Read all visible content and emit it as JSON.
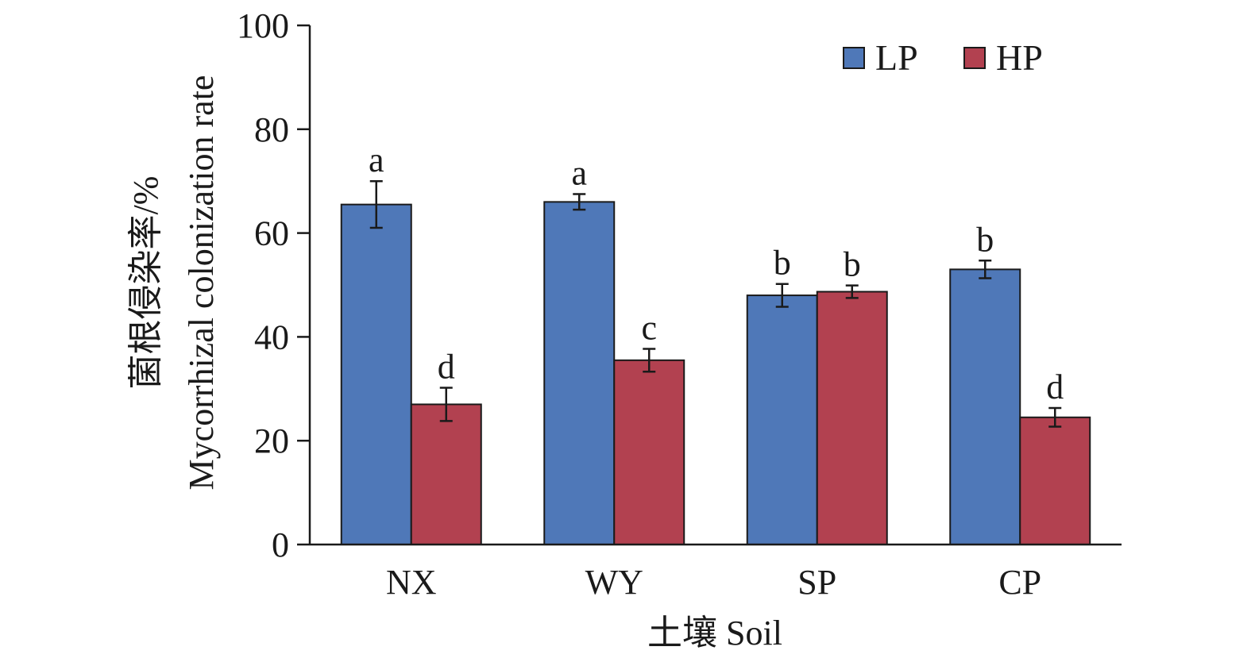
{
  "chart_data": {
    "type": "bar",
    "xlabel": "土壤 Soil",
    "ylabel": "菌根侵染率/%",
    "ylabel_en": "Mycorrhizal colonization rate",
    "categories": [
      "NX",
      "WY",
      "SP",
      "CP"
    ],
    "ylim": [
      0,
      100
    ],
    "yticks": [
      0,
      20,
      40,
      60,
      80,
      100
    ],
    "grid": false,
    "legend_position": "top-right",
    "series": [
      {
        "name": "LP",
        "color": "#4f78b8",
        "values": [
          65.5,
          66,
          48,
          53
        ],
        "errors": [
          4.5,
          1.5,
          2.2,
          1.7
        ],
        "letters": [
          "a",
          "a",
          "b",
          "b"
        ]
      },
      {
        "name": "HP",
        "color": "#b24150",
        "values": [
          27,
          35.5,
          48.7,
          24.5
        ],
        "errors": [
          3.2,
          2.2,
          1.2,
          1.8
        ],
        "letters": [
          "d",
          "c",
          "b",
          "d"
        ]
      }
    ]
  }
}
